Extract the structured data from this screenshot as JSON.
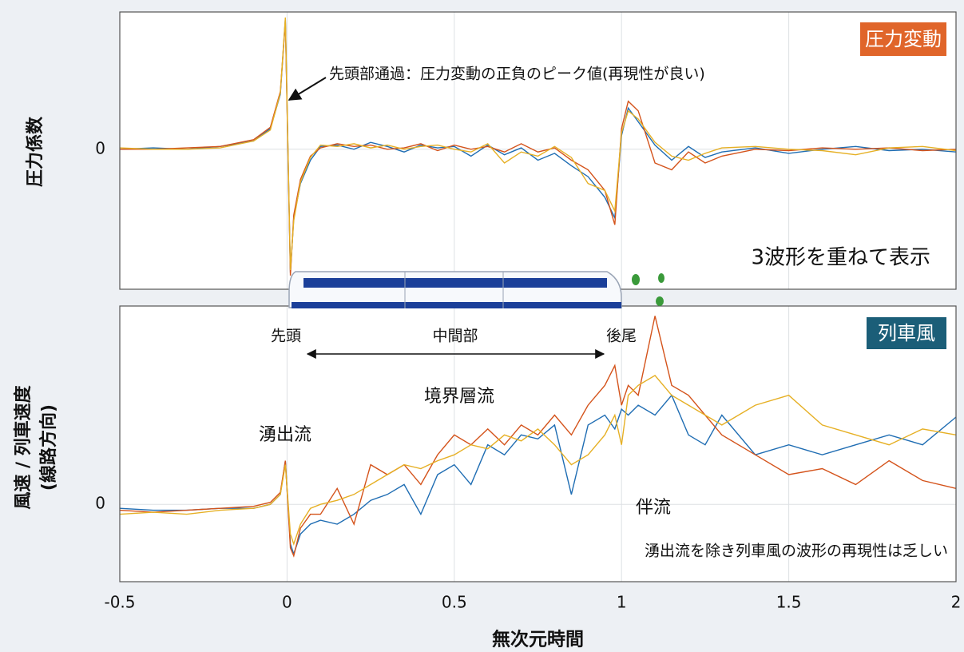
{
  "chart_data": [
    {
      "type": "line",
      "label": "圧力変動",
      "ylabel": [
        "圧力係数"
      ],
      "annotations": [
        "先頭部通過：圧力変動の正負のピーク値(再現性が良い)",
        "3波形を重ねて表示"
      ],
      "xlim": [
        -0.5,
        2
      ],
      "xticks": [
        -0.5,
        0,
        0.5,
        1,
        1.5,
        2
      ],
      "ylim": [
        -1.02,
        1.0
      ],
      "yticks": [
        0
      ],
      "grid": true,
      "x": [
        -0.5,
        -0.4,
        -0.3,
        -0.2,
        -0.1,
        -0.05,
        -0.02,
        -0.005,
        0.01,
        0.02,
        0.04,
        0.07,
        0.1,
        0.15,
        0.2,
        0.25,
        0.3,
        0.35,
        0.4,
        0.45,
        0.5,
        0.55,
        0.6,
        0.65,
        0.7,
        0.75,
        0.8,
        0.85,
        0.9,
        0.95,
        0.98,
        1.0,
        1.02,
        1.05,
        1.1,
        1.15,
        1.2,
        1.25,
        1.3,
        1.4,
        1.5,
        1.6,
        1.7,
        1.8,
        1.9,
        2.0
      ],
      "series": [
        {
          "color": "#1f6db3",
          "values": [
            0,
            0.01,
            0,
            0.02,
            0.06,
            0.15,
            0.4,
            0.95,
            -0.9,
            -0.5,
            -0.25,
            -0.08,
            0.02,
            0.03,
            0,
            0.05,
            0.02,
            -0.02,
            0.03,
            0.01,
            0.02,
            -0.05,
            0.03,
            -0.04,
            0.01,
            -0.08,
            -0.03,
            -0.12,
            -0.2,
            -0.35,
            -0.5,
            0.1,
            0.3,
            0.2,
            0.03,
            -0.08,
            0.02,
            -0.06,
            -0.02,
            0.01,
            -0.03,
            0,
            0.02,
            -0.01,
            0,
            -0.02
          ]
        },
        {
          "color": "#d4531b",
          "values": [
            0,
            0,
            0.01,
            0.02,
            0.07,
            0.16,
            0.42,
            0.93,
            -0.92,
            -0.48,
            -0.22,
            -0.05,
            0.01,
            0.04,
            0.02,
            0.03,
            0,
            0.01,
            0.04,
            -0.01,
            0.03,
            0,
            0.02,
            -0.02,
            0.04,
            -0.02,
            0.01,
            -0.08,
            -0.15,
            -0.3,
            -0.55,
            0.15,
            0.35,
            0.28,
            -0.1,
            -0.15,
            -0.02,
            -0.1,
            -0.05,
            0,
            -0.01,
            0.01,
            0,
            0.01,
            -0.01,
            0
          ]
        },
        {
          "color": "#e6b025",
          "values": [
            0.01,
            0,
            0,
            0.01,
            0.06,
            0.14,
            0.41,
            0.96,
            -0.88,
            -0.52,
            -0.24,
            -0.06,
            0.03,
            0.02,
            0.04,
            0.01,
            0.03,
            0,
            0.02,
            0.03,
            0,
            -0.02,
            0.04,
            -0.1,
            -0.02,
            -0.05,
            0.02,
            -0.06,
            -0.25,
            -0.3,
            -0.45,
            0.12,
            0.28,
            0.22,
            0.05,
            -0.05,
            -0.08,
            -0.03,
            0.01,
            0.02,
            0,
            -0.01,
            -0.04,
            0.01,
            0.02,
            -0.01
          ]
        }
      ]
    },
    {
      "type": "line",
      "label": "列車風",
      "ylabel": [
        "風速 / 列車速度",
        "(線路方向)"
      ],
      "xlabel": "無次元時間",
      "annotations": [
        "先頭",
        "中間部",
        "後尾",
        "湧出流",
        "境界層流",
        "伴流",
        "湧出流を除き列車風の波形の再現性は乏しい"
      ],
      "xlim": [
        -0.5,
        2
      ],
      "xticks": [
        -0.5,
        0,
        0.5,
        1,
        1.5,
        2
      ],
      "ylim": [
        -0.39,
        1.0
      ],
      "yticks": [
        0
      ],
      "grid": true,
      "x": [
        -0.5,
        -0.4,
        -0.3,
        -0.2,
        -0.1,
        -0.05,
        -0.02,
        -0.005,
        0.01,
        0.02,
        0.04,
        0.07,
        0.1,
        0.15,
        0.2,
        0.25,
        0.3,
        0.35,
        0.4,
        0.45,
        0.5,
        0.55,
        0.6,
        0.65,
        0.7,
        0.75,
        0.8,
        0.85,
        0.9,
        0.95,
        0.98,
        1.0,
        1.02,
        1.05,
        1.1,
        1.15,
        1.2,
        1.25,
        1.3,
        1.4,
        1.5,
        1.6,
        1.7,
        1.8,
        1.9,
        2.0
      ],
      "series": [
        {
          "color": "#1f6db3",
          "values": [
            -0.02,
            -0.03,
            -0.03,
            -0.02,
            -0.02,
            0,
            0.05,
            0.22,
            -0.2,
            -0.25,
            -0.15,
            -0.1,
            -0.08,
            -0.1,
            -0.05,
            0.02,
            0.05,
            0.1,
            -0.05,
            0.15,
            0.2,
            0.1,
            0.3,
            0.25,
            0.35,
            0.33,
            0.4,
            0.05,
            0.4,
            0.45,
            0.38,
            0.48,
            0.45,
            0.5,
            0.45,
            0.55,
            0.35,
            0.3,
            0.45,
            0.25,
            0.3,
            0.25,
            0.3,
            0.35,
            0.3,
            0.44
          ]
        },
        {
          "color": "#d4531b",
          "values": [
            -0.03,
            -0.04,
            -0.03,
            -0.02,
            -0.01,
            0.01,
            0.06,
            0.22,
            -0.22,
            -0.26,
            -0.12,
            -0.05,
            -0.05,
            0.08,
            -0.1,
            0.2,
            0.15,
            0.2,
            0.1,
            0.25,
            0.35,
            0.3,
            0.38,
            0.3,
            0.4,
            0.35,
            0.45,
            0.35,
            0.5,
            0.6,
            0.7,
            0.5,
            0.6,
            0.55,
            0.95,
            0.6,
            0.55,
            0.45,
            0.35,
            0.25,
            0.15,
            0.18,
            0.1,
            0.22,
            0.12,
            0.08
          ]
        },
        {
          "color": "#e6b025",
          "values": [
            -0.05,
            -0.04,
            -0.05,
            -0.03,
            -0.02,
            0,
            0.05,
            0.2,
            -0.15,
            -0.2,
            -0.1,
            -0.02,
            0,
            0.02,
            0.05,
            0.1,
            0.15,
            0.2,
            0.18,
            0.22,
            0.25,
            0.3,
            0.28,
            0.35,
            0.32,
            0.38,
            0.3,
            0.2,
            0.25,
            0.35,
            0.45,
            0.3,
            0.55,
            0.6,
            0.65,
            0.55,
            0.5,
            0.45,
            0.4,
            0.5,
            0.55,
            0.4,
            0.35,
            0.3,
            0.38,
            0.35
          ]
        }
      ]
    }
  ]
}
